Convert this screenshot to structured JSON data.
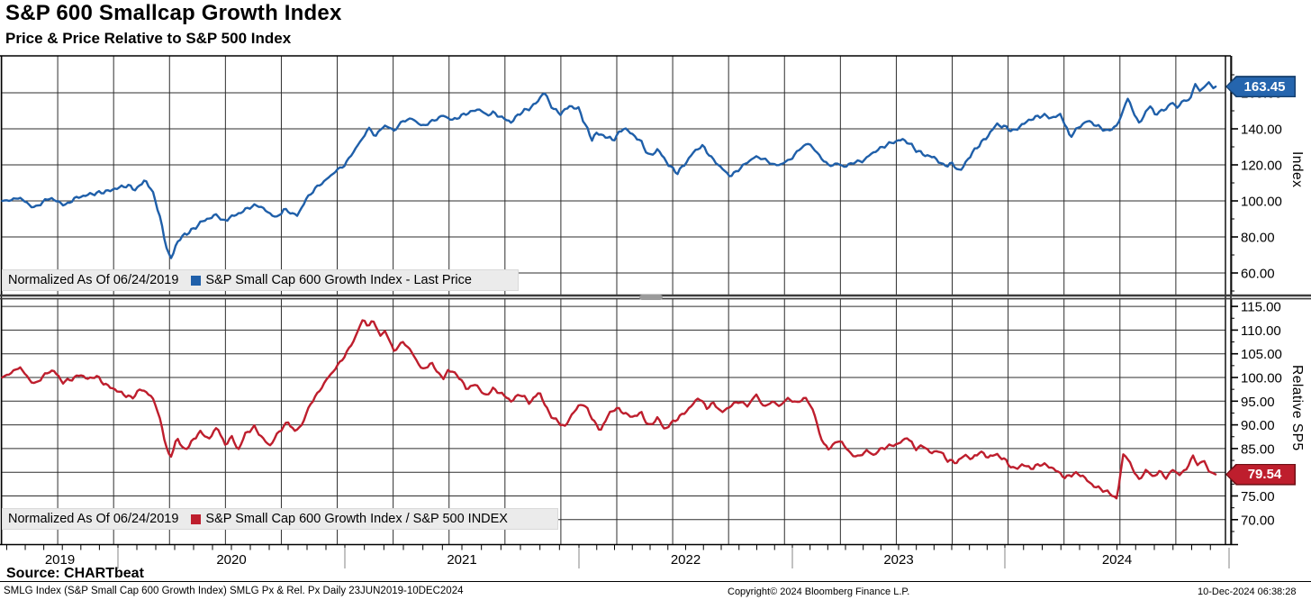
{
  "header": {
    "title": "S&P 600 Smallcap Growth Index",
    "subtitle": "Price & Price Relative to S&P 500 Index"
  },
  "colors": {
    "series_blue": "#1f5fa9",
    "series_red": "#be1e2d",
    "tag_blue_bg": "#2565ae",
    "tag_blue_border": "#16406f",
    "tag_red_bg": "#be1e2d",
    "tag_red_border": "#701016",
    "legend_bg": "#ebebeb",
    "grid": "#2e2e2e"
  },
  "top_panel": {
    "normalized_label": "Normalized As Of 06/24/2019",
    "series_label": "S&P Small Cap 600 Growth Index - Last Price",
    "axis_title": "Index",
    "last_price": "163.45"
  },
  "bottom_panel": {
    "normalized_label": "Normalized As Of 06/24/2019",
    "series_label": "S&P Small Cap 600 Growth Index / S&P 500 INDEX",
    "axis_title": "Relative SP5",
    "last_price": "79.54"
  },
  "x_axis": {
    "year_labels": [
      "2019",
      "2020",
      "2021",
      "2022",
      "2023",
      "2024"
    ]
  },
  "footer": {
    "source": "Source: CHARTbeat",
    "description": "SMLG Index (S&P Small Cap 600 Growth Index) SMLG Px & Rel. Px  Daily 23JUN2019-10DEC2024",
    "copyright": "Copyright© 2024 Bloomberg Finance L.P.",
    "timestamp": "10-Dec-2024 06:38:28"
  },
  "chart_data": [
    {
      "type": "line",
      "panel": "top",
      "title": "S&P Small Cap 600 Growth Index - Last Price",
      "normalized_as_of": "06/24/2019",
      "ylabel": "Index",
      "color": "#1f5fa9",
      "x_range": [
        2019.48,
        2024.94
      ],
      "ylim": [
        48,
        180
      ],
      "grid": true,
      "last_value": 163.45,
      "yticks": [
        {
          "v": 60,
          "label": "60.00"
        },
        {
          "v": 80,
          "label": "80.00"
        },
        {
          "v": 100,
          "label": "100.00"
        },
        {
          "v": 120,
          "label": "120.00"
        },
        {
          "v": 140,
          "label": "140.00"
        },
        {
          "v": 160,
          "label": "160.00"
        }
      ],
      "points": [
        [
          2019.48,
          100
        ],
        [
          2019.52,
          100.5
        ],
        [
          2019.56,
          101.8
        ],
        [
          2019.6,
          97.8
        ],
        [
          2019.63,
          96.3
        ],
        [
          2019.67,
          100.2
        ],
        [
          2019.7,
          101.6
        ],
        [
          2019.73,
          99.4
        ],
        [
          2019.77,
          97.6
        ],
        [
          2019.8,
          101.2
        ],
        [
          2019.83,
          102.2
        ],
        [
          2019.87,
          103.6
        ],
        [
          2019.92,
          104.6
        ],
        [
          2019.96,
          105.6
        ],
        [
          2020.0,
          107.2
        ],
        [
          2020.04,
          108.6
        ],
        [
          2020.08,
          106.2
        ],
        [
          2020.12,
          111.8
        ],
        [
          2020.16,
          103
        ],
        [
          2020.19,
          88
        ],
        [
          2020.22,
          71
        ],
        [
          2020.235,
          68
        ],
        [
          2020.26,
          77
        ],
        [
          2020.29,
          81
        ],
        [
          2020.33,
          84
        ],
        [
          2020.37,
          88.6
        ],
        [
          2020.4,
          90.2
        ],
        [
          2020.44,
          92.6
        ],
        [
          2020.46,
          88.4
        ],
        [
          2020.5,
          91.2
        ],
        [
          2020.54,
          93.4
        ],
        [
          2020.58,
          96.6
        ],
        [
          2020.62,
          97.6
        ],
        [
          2020.66,
          93.8
        ],
        [
          2020.7,
          90.6
        ],
        [
          2020.73,
          95.2
        ],
        [
          2020.76,
          93.6
        ],
        [
          2020.79,
          91.8
        ],
        [
          2020.83,
          101
        ],
        [
          2020.87,
          107
        ],
        [
          2020.92,
          112
        ],
        [
          2020.96,
          116.6
        ],
        [
          2021.0,
          120
        ],
        [
          2021.04,
          128
        ],
        [
          2021.08,
          135.5
        ],
        [
          2021.1,
          140.6
        ],
        [
          2021.13,
          136
        ],
        [
          2021.17,
          142
        ],
        [
          2021.21,
          139
        ],
        [
          2021.25,
          144.6
        ],
        [
          2021.29,
          145.6
        ],
        [
          2021.33,
          141.4
        ],
        [
          2021.37,
          144
        ],
        [
          2021.42,
          147.4
        ],
        [
          2021.46,
          144.8
        ],
        [
          2021.5,
          147.4
        ],
        [
          2021.54,
          149.6
        ],
        [
          2021.58,
          151
        ],
        [
          2021.6,
          147.4
        ],
        [
          2021.63,
          149
        ],
        [
          2021.67,
          146.4
        ],
        [
          2021.71,
          143.6
        ],
        [
          2021.75,
          149
        ],
        [
          2021.79,
          151.4
        ],
        [
          2021.83,
          156
        ],
        [
          2021.85,
          161
        ],
        [
          2021.875,
          154
        ],
        [
          2021.9,
          150
        ],
        [
          2021.92,
          148.4
        ],
        [
          2021.96,
          152.6
        ],
        [
          2022.0,
          151
        ],
        [
          2022.02,
          145
        ],
        [
          2022.06,
          134
        ],
        [
          2022.08,
          137.6
        ],
        [
          2022.12,
          136
        ],
        [
          2022.16,
          133.8
        ],
        [
          2022.21,
          140.6
        ],
        [
          2022.25,
          137
        ],
        [
          2022.29,
          133
        ],
        [
          2022.33,
          124.6
        ],
        [
          2022.37,
          128.6
        ],
        [
          2022.42,
          120
        ],
        [
          2022.46,
          115.4
        ],
        [
          2022.5,
          121
        ],
        [
          2022.54,
          127.6
        ],
        [
          2022.58,
          130.6
        ],
        [
          2022.62,
          124
        ],
        [
          2022.67,
          118
        ],
        [
          2022.71,
          113.6
        ],
        [
          2022.75,
          117.6
        ],
        [
          2022.79,
          121.6
        ],
        [
          2022.83,
          124.6
        ],
        [
          2022.87,
          123
        ],
        [
          2022.92,
          119.6
        ],
        [
          2022.96,
          121
        ],
        [
          2023.0,
          124
        ],
        [
          2023.04,
          129.6
        ],
        [
          2023.08,
          132
        ],
        [
          2023.12,
          126
        ],
        [
          2023.17,
          119.6
        ],
        [
          2023.21,
          120.6
        ],
        [
          2023.25,
          119
        ],
        [
          2023.29,
          121.6
        ],
        [
          2023.33,
          122
        ],
        [
          2023.37,
          126
        ],
        [
          2023.42,
          129.6
        ],
        [
          2023.46,
          132
        ],
        [
          2023.52,
          134.2
        ],
        [
          2023.56,
          131
        ],
        [
          2023.58,
          128.4
        ],
        [
          2023.62,
          125.6
        ],
        [
          2023.67,
          124
        ],
        [
          2023.71,
          119.6
        ],
        [
          2023.75,
          120.6
        ],
        [
          2023.79,
          116.4
        ],
        [
          2023.83,
          124
        ],
        [
          2023.87,
          130
        ],
        [
          2023.92,
          136
        ],
        [
          2023.96,
          142.6
        ],
        [
          2024.0,
          141
        ],
        [
          2024.04,
          138.6
        ],
        [
          2024.08,
          142.6
        ],
        [
          2024.12,
          145.6
        ],
        [
          2024.17,
          147.6
        ],
        [
          2024.21,
          146
        ],
        [
          2024.25,
          148
        ],
        [
          2024.29,
          135.6
        ],
        [
          2024.33,
          141
        ],
        [
          2024.37,
          144.6
        ],
        [
          2024.42,
          141
        ],
        [
          2024.46,
          138.6
        ],
        [
          2024.5,
          142
        ],
        [
          2024.52,
          147
        ],
        [
          2024.545,
          157.6
        ],
        [
          2024.56,
          153
        ],
        [
          2024.58,
          148
        ],
        [
          2024.6,
          142.4
        ],
        [
          2024.63,
          150
        ],
        [
          2024.65,
          152.6
        ],
        [
          2024.67,
          148
        ],
        [
          2024.71,
          150.6
        ],
        [
          2024.75,
          154.6
        ],
        [
          2024.77,
          151.6
        ],
        [
          2024.79,
          155
        ],
        [
          2024.83,
          157
        ],
        [
          2024.85,
          165.6
        ],
        [
          2024.87,
          160.6
        ],
        [
          2024.91,
          166
        ],
        [
          2024.93,
          162.4
        ],
        [
          2024.94,
          163.45
        ]
      ]
    },
    {
      "type": "line",
      "panel": "bottom",
      "title": "S&P Small Cap 600 Growth Index / S&P 500 INDEX",
      "normalized_as_of": "06/24/2019",
      "ylabel": "Relative SP5",
      "color": "#be1e2d",
      "x_range": [
        2019.48,
        2024.94
      ],
      "ylim": [
        64.6,
        116.5
      ],
      "grid": true,
      "last_value": 79.54,
      "yticks": [
        {
          "v": 70,
          "label": "70.00"
        },
        {
          "v": 75,
          "label": "75.00"
        },
        {
          "v": 80,
          "label": "80.00"
        },
        {
          "v": 85,
          "label": "85.00"
        },
        {
          "v": 90,
          "label": "90.00"
        },
        {
          "v": 95,
          "label": "95.00"
        },
        {
          "v": 100,
          "label": "100.00"
        },
        {
          "v": 105,
          "label": "105.00"
        },
        {
          "v": 110,
          "label": "110.00"
        },
        {
          "v": 115,
          "label": "115.00"
        }
      ],
      "points": [
        [
          2019.48,
          100
        ],
        [
          2019.52,
          101
        ],
        [
          2019.56,
          102.2
        ],
        [
          2019.6,
          99.6
        ],
        [
          2019.63,
          98.6
        ],
        [
          2019.67,
          100.6
        ],
        [
          2019.71,
          101.6
        ],
        [
          2019.75,
          99
        ],
        [
          2019.79,
          99.6
        ],
        [
          2019.83,
          100.6
        ],
        [
          2019.87,
          99.6
        ],
        [
          2019.9,
          100.4
        ],
        [
          2019.94,
          98.6
        ],
        [
          2019.98,
          97.6
        ],
        [
          2020.02,
          96.6
        ],
        [
          2020.06,
          95.6
        ],
        [
          2020.1,
          97.6
        ],
        [
          2020.14,
          96.4
        ],
        [
          2020.17,
          94
        ],
        [
          2020.2,
          88
        ],
        [
          2020.23,
          82.6
        ],
        [
          2020.26,
          87.4
        ],
        [
          2020.29,
          84.6
        ],
        [
          2020.32,
          86
        ],
        [
          2020.36,
          88.6
        ],
        [
          2020.4,
          87
        ],
        [
          2020.44,
          89.6
        ],
        [
          2020.47,
          85.6
        ],
        [
          2020.5,
          87.6
        ],
        [
          2020.53,
          84.6
        ],
        [
          2020.56,
          88
        ],
        [
          2020.6,
          89.6
        ],
        [
          2020.64,
          87
        ],
        [
          2020.67,
          85.6
        ],
        [
          2020.71,
          88.6
        ],
        [
          2020.75,
          90.6
        ],
        [
          2020.78,
          88.6
        ],
        [
          2020.81,
          90
        ],
        [
          2020.85,
          94.6
        ],
        [
          2020.88,
          96.6
        ],
        [
          2020.92,
          99.6
        ],
        [
          2020.96,
          102
        ],
        [
          2021.0,
          104.6
        ],
        [
          2021.04,
          108
        ],
        [
          2021.08,
          112.6
        ],
        [
          2021.1,
          110.4
        ],
        [
          2021.12,
          112.4
        ],
        [
          2021.15,
          108.6
        ],
        [
          2021.17,
          110
        ],
        [
          2021.21,
          105.6
        ],
        [
          2021.25,
          107.6
        ],
        [
          2021.29,
          105
        ],
        [
          2021.33,
          101.6
        ],
        [
          2021.37,
          103
        ],
        [
          2021.42,
          99.6
        ],
        [
          2021.44,
          101.6
        ],
        [
          2021.48,
          100.6
        ],
        [
          2021.52,
          97.6
        ],
        [
          2021.56,
          98.6
        ],
        [
          2021.6,
          96
        ],
        [
          2021.63,
          97.6
        ],
        [
          2021.67,
          96.6
        ],
        [
          2021.71,
          95
        ],
        [
          2021.75,
          96.6
        ],
        [
          2021.79,
          94.6
        ],
        [
          2021.83,
          97
        ],
        [
          2021.87,
          92.6
        ],
        [
          2021.9,
          91
        ],
        [
          2021.94,
          89.6
        ],
        [
          2021.98,
          93
        ],
        [
          2022.02,
          94.6
        ],
        [
          2022.06,
          91.6
        ],
        [
          2022.1,
          88.6
        ],
        [
          2022.13,
          91.6
        ],
        [
          2022.17,
          93.6
        ],
        [
          2022.21,
          92.6
        ],
        [
          2022.25,
          91.6
        ],
        [
          2022.29,
          92.6
        ],
        [
          2022.33,
          89.6
        ],
        [
          2022.37,
          91.6
        ],
        [
          2022.4,
          89
        ],
        [
          2022.44,
          90.6
        ],
        [
          2022.48,
          92
        ],
        [
          2022.52,
          93.6
        ],
        [
          2022.56,
          95.8
        ],
        [
          2022.6,
          93.6
        ],
        [
          2022.63,
          94.6
        ],
        [
          2022.67,
          92.6
        ],
        [
          2022.71,
          94
        ],
        [
          2022.75,
          95
        ],
        [
          2022.79,
          94
        ],
        [
          2022.83,
          96.4
        ],
        [
          2022.87,
          93.6
        ],
        [
          2022.9,
          95
        ],
        [
          2022.94,
          94
        ],
        [
          2022.98,
          95.6
        ],
        [
          2023.02,
          94.6
        ],
        [
          2023.06,
          95.8
        ],
        [
          2023.1,
          93
        ],
        [
          2023.13,
          87.6
        ],
        [
          2023.17,
          84.6
        ],
        [
          2023.19,
          86
        ],
        [
          2023.23,
          86.6
        ],
        [
          2023.27,
          84
        ],
        [
          2023.31,
          83.2
        ],
        [
          2023.35,
          84.6
        ],
        [
          2023.38,
          83.6
        ],
        [
          2023.42,
          85
        ],
        [
          2023.46,
          85.6
        ],
        [
          2023.5,
          86
        ],
        [
          2023.54,
          87.4
        ],
        [
          2023.58,
          85
        ],
        [
          2023.62,
          85.6
        ],
        [
          2023.65,
          84
        ],
        [
          2023.69,
          84.6
        ],
        [
          2023.73,
          82.6
        ],
        [
          2023.77,
          82
        ],
        [
          2023.81,
          83.6
        ],
        [
          2023.85,
          82.8
        ],
        [
          2023.88,
          84.4
        ],
        [
          2023.92,
          83.2
        ],
        [
          2023.96,
          83.8
        ],
        [
          2024.0,
          82.6
        ],
        [
          2024.04,
          80.6
        ],
        [
          2024.08,
          81.6
        ],
        [
          2024.12,
          80.8
        ],
        [
          2024.16,
          81.8
        ],
        [
          2024.2,
          81.2
        ],
        [
          2024.24,
          80
        ],
        [
          2024.27,
          78.8
        ],
        [
          2024.31,
          79.8
        ],
        [
          2024.35,
          79.2
        ],
        [
          2024.38,
          77.6
        ],
        [
          2024.42,
          76.6
        ],
        [
          2024.46,
          75.8
        ],
        [
          2024.5,
          74.4
        ],
        [
          2024.53,
          84.4
        ],
        [
          2024.56,
          81.6
        ],
        [
          2024.58,
          80
        ],
        [
          2024.6,
          78.2
        ],
        [
          2024.63,
          80.6
        ],
        [
          2024.66,
          79
        ],
        [
          2024.69,
          80.2
        ],
        [
          2024.72,
          78.8
        ],
        [
          2024.75,
          80.6
        ],
        [
          2024.78,
          79.4
        ],
        [
          2024.81,
          80.8
        ],
        [
          2024.84,
          83.4
        ],
        [
          2024.86,
          81.6
        ],
        [
          2024.89,
          82.4
        ],
        [
          2024.91,
          80.2
        ],
        [
          2024.94,
          79.54
        ]
      ]
    }
  ]
}
